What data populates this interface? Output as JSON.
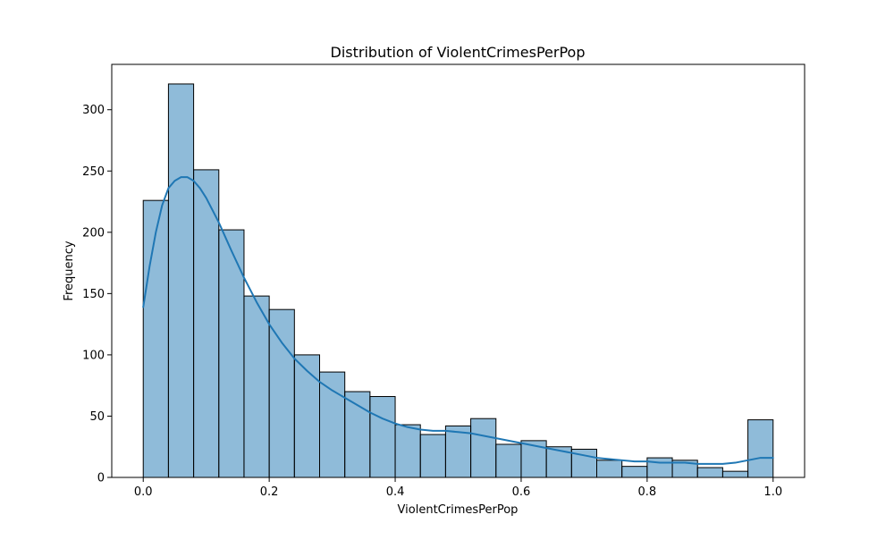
{
  "chart_data": {
    "type": "bar",
    "title": "Distribution of ViolentCrimesPerPop",
    "xlabel": "ViolentCrimesPerPop",
    "ylabel": "Frequency",
    "xlim": [
      -0.05,
      1.05
    ],
    "ylim": [
      0,
      337
    ],
    "xticks": [
      0.0,
      0.2,
      0.4,
      0.6,
      0.8,
      1.0
    ],
    "xtick_labels": [
      "0.0",
      "0.2",
      "0.4",
      "0.6",
      "0.8",
      "1.0"
    ],
    "yticks": [
      0,
      50,
      100,
      150,
      200,
      250,
      300
    ],
    "ytick_labels": [
      "0",
      "50",
      "100",
      "150",
      "200",
      "250",
      "300"
    ],
    "grid": false,
    "bar_color": "#1f77b4",
    "bar_alpha": 0.5,
    "edge_color": "#000000",
    "kde_color": "#1f77b4",
    "bins": [
      {
        "x0": 0.0,
        "x1": 0.04,
        "count": 226
      },
      {
        "x0": 0.04,
        "x1": 0.08,
        "count": 321
      },
      {
        "x0": 0.08,
        "x1": 0.12,
        "count": 251
      },
      {
        "x0": 0.12,
        "x1": 0.16,
        "count": 202
      },
      {
        "x0": 0.16,
        "x1": 0.2,
        "count": 148
      },
      {
        "x0": 0.2,
        "x1": 0.24,
        "count": 137
      },
      {
        "x0": 0.24,
        "x1": 0.28,
        "count": 100
      },
      {
        "x0": 0.28,
        "x1": 0.32,
        "count": 86
      },
      {
        "x0": 0.32,
        "x1": 0.36,
        "count": 70
      },
      {
        "x0": 0.36,
        "x1": 0.4,
        "count": 66
      },
      {
        "x0": 0.4,
        "x1": 0.44,
        "count": 43
      },
      {
        "x0": 0.44,
        "x1": 0.48,
        "count": 35
      },
      {
        "x0": 0.48,
        "x1": 0.52,
        "count": 42
      },
      {
        "x0": 0.52,
        "x1": 0.56,
        "count": 48
      },
      {
        "x0": 0.56,
        "x1": 0.6,
        "count": 27
      },
      {
        "x0": 0.6,
        "x1": 0.64,
        "count": 30
      },
      {
        "x0": 0.64,
        "x1": 0.68,
        "count": 25
      },
      {
        "x0": 0.68,
        "x1": 0.72,
        "count": 23
      },
      {
        "x0": 0.72,
        "x1": 0.76,
        "count": 14
      },
      {
        "x0": 0.76,
        "x1": 0.8,
        "count": 9
      },
      {
        "x0": 0.8,
        "x1": 0.84,
        "count": 16
      },
      {
        "x0": 0.84,
        "x1": 0.88,
        "count": 14
      },
      {
        "x0": 0.88,
        "x1": 0.92,
        "count": 8
      },
      {
        "x0": 0.92,
        "x1": 0.96,
        "count": 5
      },
      {
        "x0": 0.96,
        "x1": 1.0,
        "count": 47
      }
    ],
    "kde": {
      "x": [
        0.0,
        0.01,
        0.02,
        0.03,
        0.04,
        0.05,
        0.06,
        0.07,
        0.08,
        0.09,
        0.1,
        0.12,
        0.14,
        0.16,
        0.18,
        0.2,
        0.22,
        0.24,
        0.26,
        0.28,
        0.3,
        0.32,
        0.34,
        0.36,
        0.38,
        0.4,
        0.42,
        0.44,
        0.46,
        0.48,
        0.5,
        0.52,
        0.54,
        0.56,
        0.58,
        0.6,
        0.62,
        0.64,
        0.66,
        0.68,
        0.7,
        0.72,
        0.74,
        0.76,
        0.78,
        0.8,
        0.82,
        0.84,
        0.86,
        0.88,
        0.9,
        0.92,
        0.94,
        0.96,
        0.98,
        1.0
      ],
      "y": [
        139,
        172,
        200,
        222,
        236,
        242,
        245,
        245,
        242,
        236,
        228,
        208,
        185,
        163,
        143,
        125,
        110,
        97,
        87,
        78,
        71,
        65,
        59,
        53,
        48,
        44,
        41,
        39,
        38,
        38,
        37,
        36,
        34,
        32,
        30,
        28,
        26,
        24,
        22,
        20,
        18,
        16,
        15,
        14,
        13,
        13,
        12,
        12,
        12,
        11,
        11,
        11,
        12,
        14,
        16,
        16
      ]
    }
  }
}
